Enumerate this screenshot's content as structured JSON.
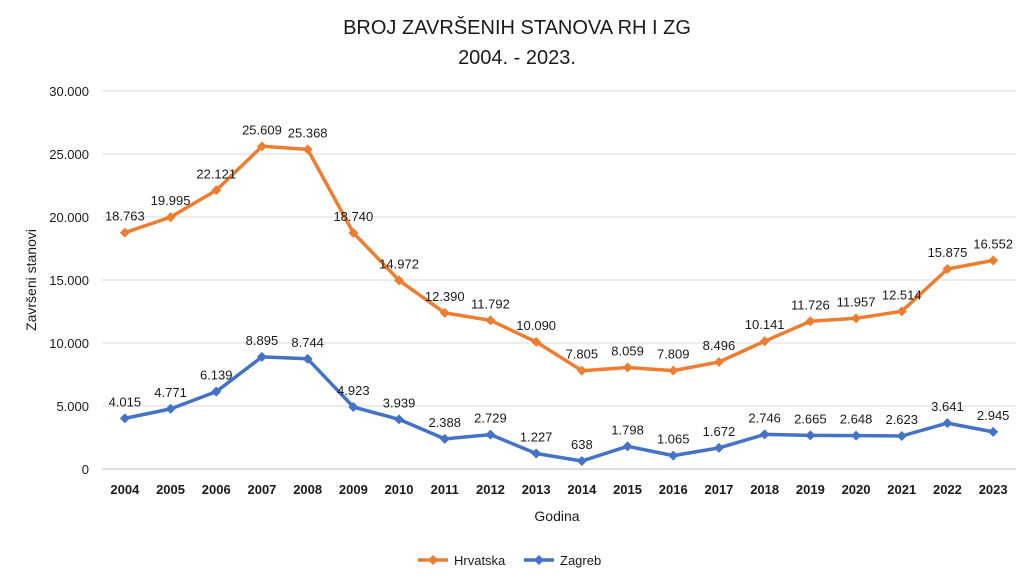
{
  "chart_data": {
    "type": "line",
    "title_line1": "BROJ ZAVRŠENIH STANOVA RH I ZG",
    "title_line2": "2004. - 2023.",
    "xlabel": "Godina",
    "ylabel": "Završeni stanovi",
    "ylim": [
      0,
      30000
    ],
    "y_ticks": [
      "0",
      "5.000",
      "10.000",
      "15.000",
      "20.000",
      "25.000",
      "30.000"
    ],
    "grid": true,
    "legend_position": "bottom",
    "categories": [
      "2004",
      "2005",
      "2006",
      "2007",
      "2008",
      "2009",
      "2010",
      "2011",
      "2012",
      "2013",
      "2014",
      "2015",
      "2016",
      "2017",
      "2018",
      "2019",
      "2020",
      "2021",
      "2022",
      "2023"
    ],
    "series": [
      {
        "name": "Hrvatska",
        "color": "#ED7D31",
        "values": [
          18763,
          19995,
          22121,
          25609,
          25368,
          18740,
          14972,
          12390,
          11792,
          10090,
          7805,
          8059,
          7809,
          8496,
          10141,
          11726,
          11957,
          12514,
          15875,
          16552
        ],
        "labels": [
          "18.763",
          "19.995",
          "22.121",
          "25.609",
          "25.368",
          "18.740",
          "14.972",
          "12.390",
          "11.792",
          "10.090",
          "7.805",
          "8.059",
          "7.809",
          "8.496",
          "10.141",
          "11.726",
          "11.957",
          "12.514",
          "15.875",
          "16.552"
        ]
      },
      {
        "name": "Zagreb",
        "color": "#4472C4",
        "values": [
          4015,
          4771,
          6139,
          8895,
          8744,
          4923,
          3939,
          2388,
          2729,
          1227,
          638,
          1798,
          1065,
          1672,
          2746,
          2665,
          2648,
          2623,
          3641,
          2945
        ],
        "labels": [
          "4.015",
          "4.771",
          "6.139",
          "8.895",
          "8.744",
          "4.923",
          "3.939",
          "2.388",
          "2.729",
          "1.227",
          "638",
          "1.798",
          "1.065",
          "1.672",
          "2.746",
          "2.665",
          "2.648",
          "2.623",
          "3.641",
          "2.945"
        ]
      }
    ]
  }
}
